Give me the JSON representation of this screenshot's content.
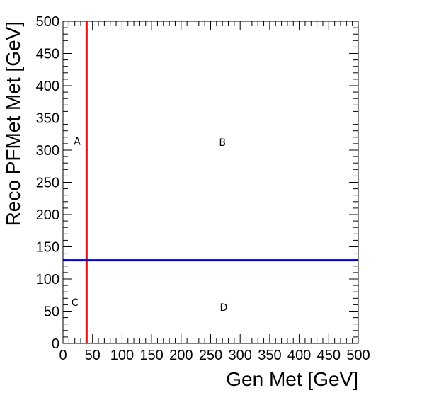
{
  "chart_data": {
    "type": "scatter",
    "title": "",
    "xlabel": "Gen Met [GeV]",
    "ylabel": "Reco PFMet Met [GeV]",
    "xlim": [
      0,
      500
    ],
    "ylim": [
      0,
      500
    ],
    "xticks": [
      "0",
      "50",
      "100",
      "150",
      "200",
      "250",
      "300",
      "350",
      "400",
      "450",
      "500"
    ],
    "yticks": [
      "0",
      "50",
      "100",
      "150",
      "200",
      "250",
      "300",
      "350",
      "400",
      "450",
      "500"
    ],
    "grid": false,
    "cut_lines": [
      {
        "orientation": "vertical",
        "value": 40,
        "color": "#ee1111"
      },
      {
        "orientation": "horizontal",
        "value": 129,
        "color": "#0000dd"
      }
    ],
    "regions": [
      {
        "label": "A",
        "x": 24,
        "y": 314
      },
      {
        "label": "B",
        "x": 270,
        "y": 312
      },
      {
        "label": "C",
        "x": 20,
        "y": 64
      },
      {
        "label": "D",
        "x": 272,
        "y": 56
      }
    ]
  }
}
